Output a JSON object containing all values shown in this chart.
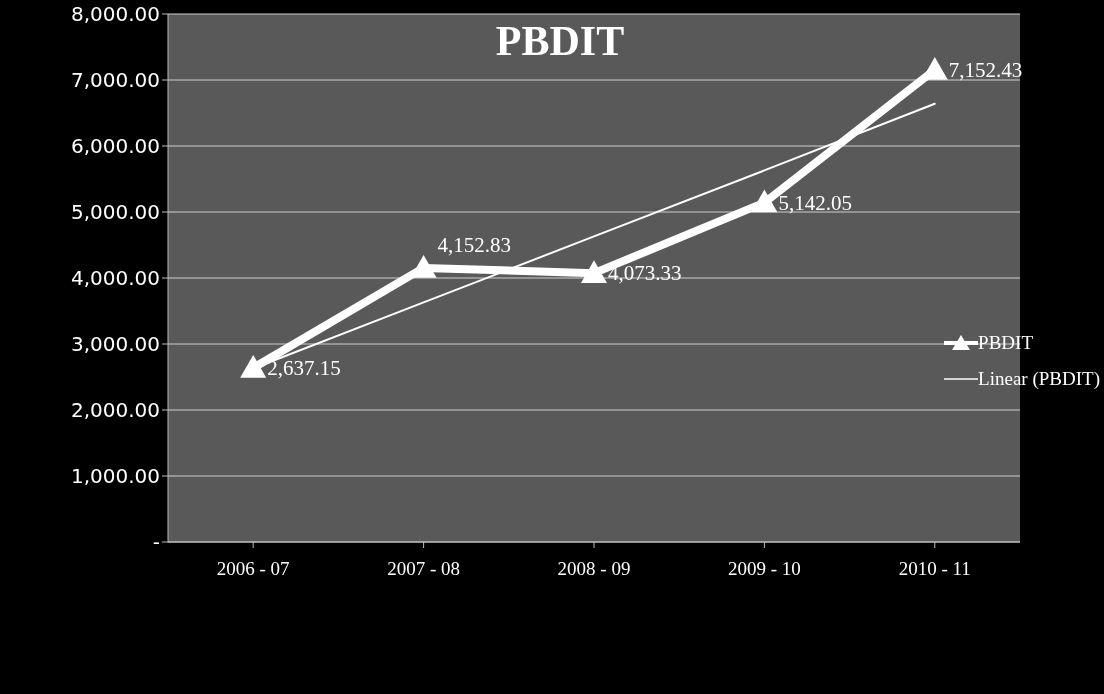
{
  "chart_data": {
    "type": "line",
    "title": "PBDIT",
    "categories": [
      "2006 - 07",
      "2007 - 08",
      "2008 - 09",
      "2009 - 10",
      "2010 - 11"
    ],
    "series": [
      {
        "name": "PBDIT",
        "color": "#ffffff",
        "values": [
          2637.15,
          4152.83,
          4073.33,
          5142.05,
          7152.43
        ],
        "marker": "triangle",
        "value_labels": [
          "2,637.15",
          "4,152.83",
          "4,073.33",
          "5,142.05",
          "7,152.43"
        ]
      },
      {
        "name": "Linear (PBDIT)",
        "color": "#ffffff",
        "values": [
          2630,
          3630,
          4630,
          5630,
          6640
        ],
        "marker": "none"
      }
    ],
    "ylim": [
      0,
      8000
    ],
    "yticks": [
      {
        "value": 0,
        "label": "-"
      },
      {
        "value": 1000,
        "label": "1,000.00"
      },
      {
        "value": 2000,
        "label": "2,000.00"
      },
      {
        "value": 3000,
        "label": "3,000.00"
      },
      {
        "value": 4000,
        "label": "4,000.00"
      },
      {
        "value": 5000,
        "label": "5,000.00"
      },
      {
        "value": 6000,
        "label": "6,000.00"
      },
      {
        "value": 7000,
        "label": "7,000.00"
      },
      {
        "value": 8000,
        "label": "8,000.00"
      }
    ],
    "grid": "y",
    "legend": "right",
    "line_style": "solid"
  }
}
